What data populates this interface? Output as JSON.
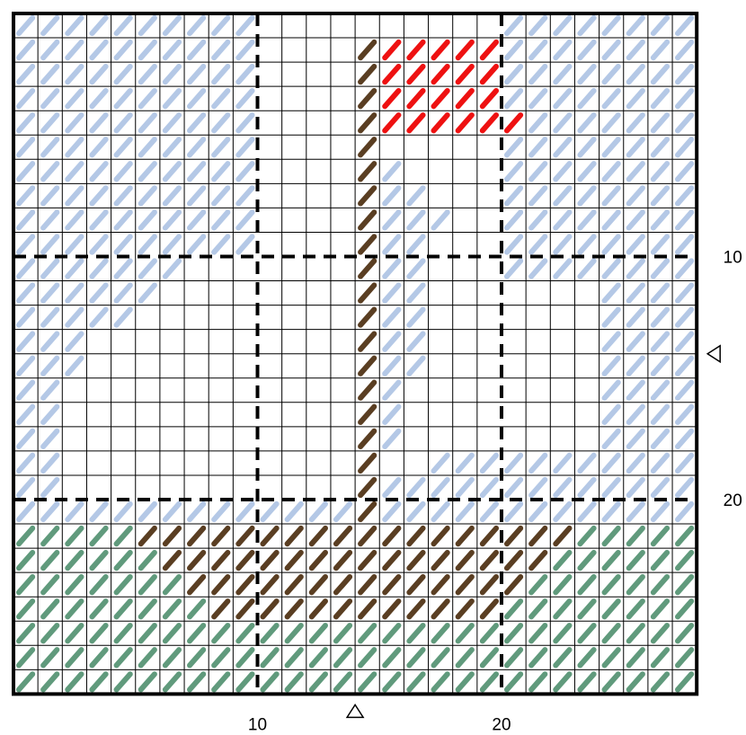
{
  "pattern": {
    "columns": 28,
    "rows": 28,
    "major_every": 10,
    "colors": {
      "sky": "#b4c8e6",
      "grass": "#609a7c",
      "pole": "#5a3e22",
      "flag": "#ee1111",
      "grid": "#000000",
      "background": "#ffffff"
    },
    "stitch_icon": "diagonal-half-stitch",
    "center_marker_icon": "triangle-marker-icon"
  },
  "axes": {
    "x_labels": [
      {
        "value": 10,
        "text": "10"
      },
      {
        "value": 20,
        "text": "20"
      }
    ],
    "y_labels": [
      {
        "value": 10,
        "text": "10"
      },
      {
        "value": 20,
        "text": "20"
      }
    ],
    "center_x": 14,
    "center_y": 14
  }
}
